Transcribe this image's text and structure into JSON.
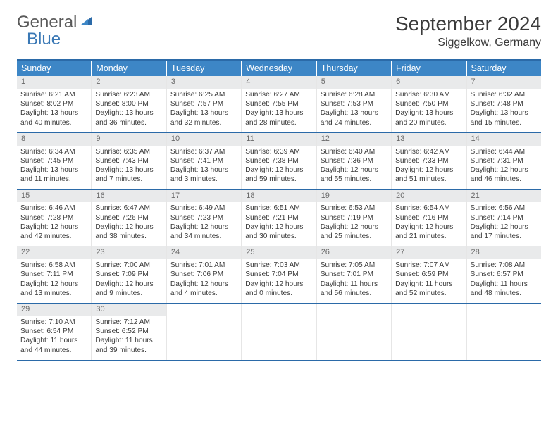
{
  "logo": {
    "general": "General",
    "blue": "Blue"
  },
  "title": "September 2024",
  "location": "Siggelkow, Germany",
  "colors": {
    "header_bar": "#3d86c6",
    "header_border": "#2b6aa8",
    "daynum_bg": "#e9eaeb",
    "text": "#3a3a3a",
    "logo_blue": "#3a78b5"
  },
  "days_of_week": [
    "Sunday",
    "Monday",
    "Tuesday",
    "Wednesday",
    "Thursday",
    "Friday",
    "Saturday"
  ],
  "weeks": [
    [
      {
        "n": "1",
        "sr": "Sunrise: 6:21 AM",
        "ss": "Sunset: 8:02 PM",
        "dl1": "Daylight: 13 hours",
        "dl2": "and 40 minutes."
      },
      {
        "n": "2",
        "sr": "Sunrise: 6:23 AM",
        "ss": "Sunset: 8:00 PM",
        "dl1": "Daylight: 13 hours",
        "dl2": "and 36 minutes."
      },
      {
        "n": "3",
        "sr": "Sunrise: 6:25 AM",
        "ss": "Sunset: 7:57 PM",
        "dl1": "Daylight: 13 hours",
        "dl2": "and 32 minutes."
      },
      {
        "n": "4",
        "sr": "Sunrise: 6:27 AM",
        "ss": "Sunset: 7:55 PM",
        "dl1": "Daylight: 13 hours",
        "dl2": "and 28 minutes."
      },
      {
        "n": "5",
        "sr": "Sunrise: 6:28 AM",
        "ss": "Sunset: 7:53 PM",
        "dl1": "Daylight: 13 hours",
        "dl2": "and 24 minutes."
      },
      {
        "n": "6",
        "sr": "Sunrise: 6:30 AM",
        "ss": "Sunset: 7:50 PM",
        "dl1": "Daylight: 13 hours",
        "dl2": "and 20 minutes."
      },
      {
        "n": "7",
        "sr": "Sunrise: 6:32 AM",
        "ss": "Sunset: 7:48 PM",
        "dl1": "Daylight: 13 hours",
        "dl2": "and 15 minutes."
      }
    ],
    [
      {
        "n": "8",
        "sr": "Sunrise: 6:34 AM",
        "ss": "Sunset: 7:45 PM",
        "dl1": "Daylight: 13 hours",
        "dl2": "and 11 minutes."
      },
      {
        "n": "9",
        "sr": "Sunrise: 6:35 AM",
        "ss": "Sunset: 7:43 PM",
        "dl1": "Daylight: 13 hours",
        "dl2": "and 7 minutes."
      },
      {
        "n": "10",
        "sr": "Sunrise: 6:37 AM",
        "ss": "Sunset: 7:41 PM",
        "dl1": "Daylight: 13 hours",
        "dl2": "and 3 minutes."
      },
      {
        "n": "11",
        "sr": "Sunrise: 6:39 AM",
        "ss": "Sunset: 7:38 PM",
        "dl1": "Daylight: 12 hours",
        "dl2": "and 59 minutes."
      },
      {
        "n": "12",
        "sr": "Sunrise: 6:40 AM",
        "ss": "Sunset: 7:36 PM",
        "dl1": "Daylight: 12 hours",
        "dl2": "and 55 minutes."
      },
      {
        "n": "13",
        "sr": "Sunrise: 6:42 AM",
        "ss": "Sunset: 7:33 PM",
        "dl1": "Daylight: 12 hours",
        "dl2": "and 51 minutes."
      },
      {
        "n": "14",
        "sr": "Sunrise: 6:44 AM",
        "ss": "Sunset: 7:31 PM",
        "dl1": "Daylight: 12 hours",
        "dl2": "and 46 minutes."
      }
    ],
    [
      {
        "n": "15",
        "sr": "Sunrise: 6:46 AM",
        "ss": "Sunset: 7:28 PM",
        "dl1": "Daylight: 12 hours",
        "dl2": "and 42 minutes."
      },
      {
        "n": "16",
        "sr": "Sunrise: 6:47 AM",
        "ss": "Sunset: 7:26 PM",
        "dl1": "Daylight: 12 hours",
        "dl2": "and 38 minutes."
      },
      {
        "n": "17",
        "sr": "Sunrise: 6:49 AM",
        "ss": "Sunset: 7:23 PM",
        "dl1": "Daylight: 12 hours",
        "dl2": "and 34 minutes."
      },
      {
        "n": "18",
        "sr": "Sunrise: 6:51 AM",
        "ss": "Sunset: 7:21 PM",
        "dl1": "Daylight: 12 hours",
        "dl2": "and 30 minutes."
      },
      {
        "n": "19",
        "sr": "Sunrise: 6:53 AM",
        "ss": "Sunset: 7:19 PM",
        "dl1": "Daylight: 12 hours",
        "dl2": "and 25 minutes."
      },
      {
        "n": "20",
        "sr": "Sunrise: 6:54 AM",
        "ss": "Sunset: 7:16 PM",
        "dl1": "Daylight: 12 hours",
        "dl2": "and 21 minutes."
      },
      {
        "n": "21",
        "sr": "Sunrise: 6:56 AM",
        "ss": "Sunset: 7:14 PM",
        "dl1": "Daylight: 12 hours",
        "dl2": "and 17 minutes."
      }
    ],
    [
      {
        "n": "22",
        "sr": "Sunrise: 6:58 AM",
        "ss": "Sunset: 7:11 PM",
        "dl1": "Daylight: 12 hours",
        "dl2": "and 13 minutes."
      },
      {
        "n": "23",
        "sr": "Sunrise: 7:00 AM",
        "ss": "Sunset: 7:09 PM",
        "dl1": "Daylight: 12 hours",
        "dl2": "and 9 minutes."
      },
      {
        "n": "24",
        "sr": "Sunrise: 7:01 AM",
        "ss": "Sunset: 7:06 PM",
        "dl1": "Daylight: 12 hours",
        "dl2": "and 4 minutes."
      },
      {
        "n": "25",
        "sr": "Sunrise: 7:03 AM",
        "ss": "Sunset: 7:04 PM",
        "dl1": "Daylight: 12 hours",
        "dl2": "and 0 minutes."
      },
      {
        "n": "26",
        "sr": "Sunrise: 7:05 AM",
        "ss": "Sunset: 7:01 PM",
        "dl1": "Daylight: 11 hours",
        "dl2": "and 56 minutes."
      },
      {
        "n": "27",
        "sr": "Sunrise: 7:07 AM",
        "ss": "Sunset: 6:59 PM",
        "dl1": "Daylight: 11 hours",
        "dl2": "and 52 minutes."
      },
      {
        "n": "28",
        "sr": "Sunrise: 7:08 AM",
        "ss": "Sunset: 6:57 PM",
        "dl1": "Daylight: 11 hours",
        "dl2": "and 48 minutes."
      }
    ],
    [
      {
        "n": "29",
        "sr": "Sunrise: 7:10 AM",
        "ss": "Sunset: 6:54 PM",
        "dl1": "Daylight: 11 hours",
        "dl2": "and 44 minutes."
      },
      {
        "n": "30",
        "sr": "Sunrise: 7:12 AM",
        "ss": "Sunset: 6:52 PM",
        "dl1": "Daylight: 11 hours",
        "dl2": "and 39 minutes."
      },
      null,
      null,
      null,
      null,
      null
    ]
  ]
}
